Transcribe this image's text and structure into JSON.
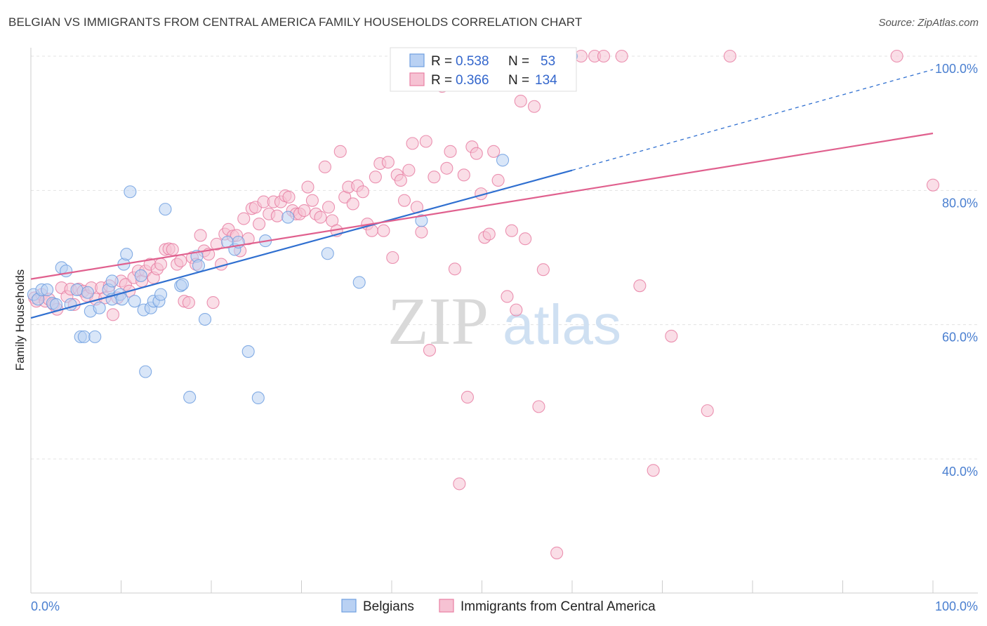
{
  "title": "BELGIAN VS IMMIGRANTS FROM CENTRAL AMERICA FAMILY HOUSEHOLDS CORRELATION CHART",
  "source": "Source: ZipAtlas.com",
  "watermark": {
    "zip": "ZIP",
    "atlas": "atlas"
  },
  "colors": {
    "blue": "#6f9fe0",
    "blue_fill": "#b9d1f3",
    "pink": "#e87fa3",
    "pink_fill": "#f6c2d3",
    "blue_line": "#2f6fd0",
    "pink_line": "#e0608e"
  },
  "chart_data": {
    "type": "scatter",
    "title": "BELGIAN VS IMMIGRANTS FROM CENTRAL AMERICA FAMILY HOUSEHOLDS CORRELATION CHART",
    "xlabel": "",
    "ylabel": "Family Households",
    "xlim": [
      0,
      100
    ],
    "ylim": [
      20,
      102
    ],
    "x_tick_labels": [
      "0.0%",
      "100.0%"
    ],
    "y_ticks": [
      40,
      60,
      80,
      100
    ],
    "y_tick_labels": [
      "40.0%",
      "60.0%",
      "80.0%",
      "100.0%"
    ],
    "grid": true,
    "legend_position": "bottom",
    "stats": [
      {
        "r_label": "R =",
        "r": "0.538",
        "n_label": "N =",
        "n": "53"
      },
      {
        "r_label": "R =",
        "r": "0.366",
        "n_label": "N =",
        "n": "134"
      }
    ],
    "series": [
      {
        "name": "Belgians",
        "color": "#6f9fe0",
        "trend": {
          "x": [
            0,
            60
          ],
          "y": [
            61.0,
            83.0
          ],
          "dashed_to": [
            100,
            98.0
          ]
        },
        "points": [
          [
            0.3,
            64.5
          ],
          [
            0.8,
            63.8
          ],
          [
            1.2,
            65.2
          ],
          [
            1.8,
            65.2
          ],
          [
            2.4,
            63.2
          ],
          [
            2.8,
            63.0
          ],
          [
            3.4,
            68.5
          ],
          [
            3.9,
            68.0
          ],
          [
            4.4,
            63.0
          ],
          [
            5.1,
            65.2
          ],
          [
            5.5,
            58.2
          ],
          [
            5.9,
            58.2
          ],
          [
            6.3,
            64.8
          ],
          [
            6.6,
            62.0
          ],
          [
            7.1,
            58.2
          ],
          [
            7.6,
            62.5
          ],
          [
            8.6,
            65.2
          ],
          [
            9.0,
            63.8
          ],
          [
            9.0,
            66.5
          ],
          [
            9.9,
            64.5
          ],
          [
            10.1,
            63.8
          ],
          [
            10.3,
            69.0
          ],
          [
            10.6,
            70.5
          ],
          [
            11.0,
            79.8
          ],
          [
            11.5,
            63.5
          ],
          [
            12.2,
            67.3
          ],
          [
            12.5,
            62.2
          ],
          [
            12.7,
            53.0
          ],
          [
            13.3,
            62.5
          ],
          [
            13.6,
            63.5
          ],
          [
            14.2,
            63.5
          ],
          [
            14.4,
            64.5
          ],
          [
            14.9,
            77.2
          ],
          [
            16.6,
            65.8
          ],
          [
            16.8,
            66.0
          ],
          [
            17.6,
            49.2
          ],
          [
            18.4,
            70.2
          ],
          [
            18.6,
            68.8
          ],
          [
            19.3,
            60.8
          ],
          [
            21.8,
            72.3
          ],
          [
            22.6,
            71.2
          ],
          [
            23.0,
            72.3
          ],
          [
            24.1,
            56.0
          ],
          [
            25.2,
            49.1
          ],
          [
            26.0,
            72.5
          ],
          [
            28.5,
            76.0
          ],
          [
            32.9,
            70.6
          ],
          [
            36.4,
            66.3
          ],
          [
            43.3,
            75.5
          ],
          [
            52.0,
            100.0
          ],
          [
            52.3,
            84.5
          ],
          [
            57.0,
            100.0
          ],
          [
            59.9,
            100.0
          ]
        ]
      },
      {
        "name": "Immigrants from Central America",
        "color": "#e87fa3",
        "trend": {
          "x": [
            0,
            100
          ],
          "y": [
            66.8,
            88.5
          ]
        },
        "points": [
          [
            0.4,
            64.0
          ],
          [
            0.6,
            63.5
          ],
          [
            1.2,
            64.5
          ],
          [
            1.6,
            63.5
          ],
          [
            2.0,
            63.8
          ],
          [
            2.5,
            63.0
          ],
          [
            2.9,
            62.3
          ],
          [
            3.4,
            65.5
          ],
          [
            4.0,
            64.2
          ],
          [
            4.4,
            65.3
          ],
          [
            4.8,
            63.0
          ],
          [
            5.3,
            65.3
          ],
          [
            5.8,
            65.0
          ],
          [
            6.2,
            64.3
          ],
          [
            6.7,
            65.5
          ],
          [
            7.2,
            63.8
          ],
          [
            7.8,
            65.5
          ],
          [
            8.2,
            64.0
          ],
          [
            8.7,
            65.8
          ],
          [
            9.1,
            61.5
          ],
          [
            9.6,
            64.0
          ],
          [
            10.0,
            66.5
          ],
          [
            10.5,
            66.0
          ],
          [
            10.9,
            65.0
          ],
          [
            11.4,
            67.0
          ],
          [
            11.9,
            68.0
          ],
          [
            12.3,
            66.5
          ],
          [
            12.7,
            68.0
          ],
          [
            13.2,
            69.0
          ],
          [
            13.6,
            67.0
          ],
          [
            14.0,
            68.3
          ],
          [
            14.4,
            69.0
          ],
          [
            14.9,
            71.2
          ],
          [
            15.3,
            71.3
          ],
          [
            15.7,
            71.2
          ],
          [
            16.2,
            69.0
          ],
          [
            16.6,
            69.5
          ],
          [
            17.0,
            63.5
          ],
          [
            17.5,
            63.3
          ],
          [
            17.9,
            70.0
          ],
          [
            18.3,
            69.0
          ],
          [
            18.8,
            73.3
          ],
          [
            19.2,
            71.0
          ],
          [
            19.7,
            70.5
          ],
          [
            20.2,
            63.3
          ],
          [
            20.6,
            72.0
          ],
          [
            21.1,
            69.0
          ],
          [
            21.5,
            73.5
          ],
          [
            21.9,
            74.2
          ],
          [
            22.4,
            73.2
          ],
          [
            22.8,
            73.3
          ],
          [
            23.2,
            71.0
          ],
          [
            23.6,
            75.8
          ],
          [
            24.1,
            72.8
          ],
          [
            24.5,
            77.3
          ],
          [
            24.9,
            77.5
          ],
          [
            25.3,
            75.0
          ],
          [
            25.8,
            78.3
          ],
          [
            26.4,
            76.5
          ],
          [
            26.9,
            78.3
          ],
          [
            27.3,
            76.2
          ],
          [
            27.7,
            78.3
          ],
          [
            28.2,
            79.2
          ],
          [
            28.6,
            79.0
          ],
          [
            29.0,
            77.0
          ],
          [
            29.4,
            76.5
          ],
          [
            29.8,
            76.5
          ],
          [
            30.3,
            77.0
          ],
          [
            30.7,
            80.5
          ],
          [
            31.2,
            78.5
          ],
          [
            31.6,
            76.5
          ],
          [
            32.1,
            76.0
          ],
          [
            32.6,
            83.5
          ],
          [
            33.0,
            77.5
          ],
          [
            33.4,
            75.5
          ],
          [
            33.9,
            74.0
          ],
          [
            34.3,
            85.8
          ],
          [
            34.8,
            79.0
          ],
          [
            35.2,
            80.5
          ],
          [
            35.7,
            78.0
          ],
          [
            36.2,
            80.7
          ],
          [
            36.8,
            79.8
          ],
          [
            37.3,
            75.0
          ],
          [
            37.8,
            74.0
          ],
          [
            38.2,
            82.0
          ],
          [
            38.7,
            84.0
          ],
          [
            39.1,
            74.0
          ],
          [
            39.6,
            84.2
          ],
          [
            40.1,
            70.0
          ],
          [
            40.6,
            82.3
          ],
          [
            41.0,
            81.5
          ],
          [
            41.4,
            78.5
          ],
          [
            41.9,
            83.0
          ],
          [
            42.3,
            87.0
          ],
          [
            42.8,
            77.5
          ],
          [
            43.3,
            73.8
          ],
          [
            43.8,
            87.3
          ],
          [
            44.2,
            56.2
          ],
          [
            44.7,
            82.0
          ],
          [
            45.1,
            99.8
          ],
          [
            45.6,
            95.5
          ],
          [
            46.1,
            83.3
          ],
          [
            46.5,
            85.8
          ],
          [
            47.0,
            68.3
          ],
          [
            47.5,
            36.3
          ],
          [
            48.0,
            82.3
          ],
          [
            48.4,
            49.2
          ],
          [
            48.9,
            86.5
          ],
          [
            49.4,
            85.5
          ],
          [
            49.9,
            79.5
          ],
          [
            50.3,
            73.0
          ],
          [
            50.8,
            73.5
          ],
          [
            51.3,
            85.8
          ],
          [
            51.8,
            81.5
          ],
          [
            52.3,
            100.0
          ],
          [
            52.8,
            64.2
          ],
          [
            53.3,
            74.0
          ],
          [
            53.8,
            62.2
          ],
          [
            54.3,
            93.3
          ],
          [
            54.8,
            72.8
          ],
          [
            55.3,
            100.0
          ],
          [
            55.8,
            92.5
          ],
          [
            56.3,
            47.8
          ],
          [
            56.8,
            68.2
          ],
          [
            57.3,
            99.0
          ],
          [
            57.8,
            100.0
          ],
          [
            58.3,
            26.0
          ],
          [
            59.5,
            100.0
          ],
          [
            61.0,
            100.0
          ],
          [
            62.5,
            100.0
          ],
          [
            63.5,
            100.0
          ],
          [
            65.5,
            100.0
          ],
          [
            67.5,
            65.8
          ],
          [
            69.0,
            38.3
          ],
          [
            71.0,
            58.3
          ],
          [
            75.0,
            47.2
          ],
          [
            77.5,
            100.0
          ],
          [
            96.0,
            100.0
          ],
          [
            100.0,
            80.8
          ]
        ]
      }
    ]
  }
}
